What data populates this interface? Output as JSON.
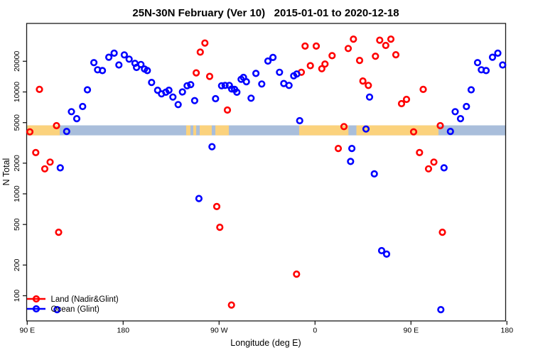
{
  "title": "25N-30N February (Ver 10)   2015-01-01 to 2020-12-18",
  "chart_data": {
    "type": "scatter",
    "title": "25N-30N February (Ver 10)   2015-01-01 to 2020-12-18",
    "xlabel": "Longitude (deg E)",
    "ylabel": "N Total",
    "x_axis": {
      "range": [
        90,
        540
      ],
      "ticks": [
        {
          "value": 90,
          "label": "90 E"
        },
        {
          "value": 180,
          "label": "180"
        },
        {
          "value": 270,
          "label": "90 W"
        },
        {
          "value": 360,
          "label": "0"
        },
        {
          "value": 450,
          "label": "90 E"
        },
        {
          "value": 540,
          "label": "180"
        }
      ]
    },
    "y_axis": {
      "scale": "log",
      "range": [
        57,
        47000
      ],
      "ticks": [
        100,
        200,
        500,
        1000,
        2000,
        5000,
        10000,
        20000
      ]
    },
    "legend": {
      "position": "bottom-left",
      "entries": [
        {
          "label": "Land (Nadir&Glint)",
          "color": "#ff0000"
        },
        {
          "label": "Ocean (Glint)",
          "color": "#0000ff"
        }
      ]
    },
    "map_band": {
      "description": "land/ocean strip along 25N-30N drawn across the plot",
      "ocean_color": "#a9bedb",
      "land_color": "#fbd27d",
      "value_top": 4700,
      "value_bottom": 3750,
      "ocean_extent": [
        90,
        540
      ],
      "land_segments": [
        [
          90,
          120.5
        ],
        [
          239.1,
          243.1
        ],
        [
          245.8,
          248.5
        ],
        [
          251.8,
          263.1
        ],
        [
          266.5,
          279.1
        ],
        [
          345.1,
          391.3
        ],
        [
          398.8,
          475.8
        ]
      ]
    },
    "series": [
      {
        "name": "Land (Nadir&Glint)",
        "color": "#ff0000",
        "points": [
          [
            101.5,
            10600
          ],
          [
            461.5,
            10600
          ],
          [
            117.5,
            4670
          ],
          [
            477.5,
            4670
          ],
          [
            92.5,
            4060
          ],
          [
            452.5,
            4060
          ],
          [
            98,
            2540
          ],
          [
            458,
            2540
          ],
          [
            111.5,
            2050
          ],
          [
            471.5,
            2050
          ],
          [
            106.5,
            1760
          ],
          [
            466.5,
            1760
          ],
          [
            119.5,
            420
          ],
          [
            479.5,
            420
          ],
          [
            256.7,
            30200
          ],
          [
            252.3,
            24600
          ],
          [
            248.5,
            15400
          ],
          [
            261.1,
            14200
          ],
          [
            277.8,
            6640
          ],
          [
            267.8,
            750
          ],
          [
            270.7,
            470
          ],
          [
            281.6,
            81
          ],
          [
            342.7,
            163
          ],
          [
            350.7,
            28200
          ],
          [
            361.1,
            28200
          ],
          [
            347.1,
            15600
          ],
          [
            355.6,
            18100
          ],
          [
            366.3,
            16900
          ],
          [
            369.3,
            18800
          ],
          [
            376,
            22700
          ],
          [
            381.8,
            2790
          ],
          [
            391.1,
            26700
          ],
          [
            396,
            33000
          ],
          [
            401.8,
            20400
          ],
          [
            404.9,
            12800
          ],
          [
            410,
            11600
          ],
          [
            387.1,
            4570
          ],
          [
            416.7,
            22400
          ],
          [
            420.7,
            32200
          ],
          [
            426.3,
            28600
          ],
          [
            431.1,
            33000
          ],
          [
            435.8,
            23200
          ],
          [
            441.1,
            7670
          ],
          [
            445.8,
            8450
          ]
        ]
      },
      {
        "name": "Ocean (Glint)",
        "color": "#0000ff",
        "points": [
          [
            152.5,
            19400
          ],
          [
            512.5,
            19400
          ],
          [
            156,
            16500
          ],
          [
            516,
            16500
          ],
          [
            160.5,
            16200
          ],
          [
            520.5,
            16200
          ],
          [
            166.5,
            21900
          ],
          [
            526.5,
            21900
          ],
          [
            171.5,
            24000
          ],
          [
            531.5,
            24000
          ],
          [
            176,
            18400
          ],
          [
            536,
            18400
          ],
          [
            146.5,
            10500
          ],
          [
            506.5,
            10500
          ],
          [
            142,
            7200
          ],
          [
            502,
            7200
          ],
          [
            136.5,
            5470
          ],
          [
            496.5,
            5470
          ],
          [
            131.5,
            6400
          ],
          [
            491.5,
            6400
          ],
          [
            127,
            4100
          ],
          [
            487,
            4100
          ],
          [
            121,
            1800
          ],
          [
            481,
            1800
          ],
          [
            118,
            73
          ],
          [
            478,
            73
          ],
          [
            181.1,
            23100
          ],
          [
            185.6,
            21000
          ],
          [
            191.1,
            19100
          ],
          [
            192.5,
            17400
          ],
          [
            196.7,
            18600
          ],
          [
            200,
            16800
          ],
          [
            202.7,
            16200
          ],
          [
            206.7,
            12400
          ],
          [
            212.3,
            10400
          ],
          [
            216,
            9570
          ],
          [
            220,
            9930
          ],
          [
            222.9,
            10400
          ],
          [
            226.7,
            8910
          ],
          [
            231.6,
            7520
          ],
          [
            235.6,
            10000
          ],
          [
            240,
            11500
          ],
          [
            243.3,
            11800
          ],
          [
            247.1,
            8220
          ],
          [
            251.1,
            900
          ],
          [
            263.3,
            2900
          ],
          [
            266.7,
            8590
          ],
          [
            272.3,
            11500
          ],
          [
            275.6,
            11600
          ],
          [
            279.6,
            11600
          ],
          [
            281.8,
            10700
          ],
          [
            284.5,
            10600
          ],
          [
            286.7,
            9930
          ],
          [
            290.7,
            13300
          ],
          [
            292.9,
            13900
          ],
          [
            295.6,
            12600
          ],
          [
            300,
            8690
          ],
          [
            304.5,
            15200
          ],
          [
            310,
            11970
          ],
          [
            315.8,
            20100
          ],
          [
            320.5,
            21800
          ],
          [
            326.7,
            15600
          ],
          [
            330.7,
            12100
          ],
          [
            335.6,
            11600
          ],
          [
            340,
            14400
          ],
          [
            342.9,
            15000
          ],
          [
            345.6,
            5220
          ],
          [
            393.3,
            2080
          ],
          [
            394.5,
            2790
          ],
          [
            407.8,
            4330
          ],
          [
            411.1,
            8910
          ],
          [
            415.6,
            1570
          ],
          [
            422.5,
            277
          ],
          [
            427.1,
            256
          ]
        ]
      }
    ]
  }
}
